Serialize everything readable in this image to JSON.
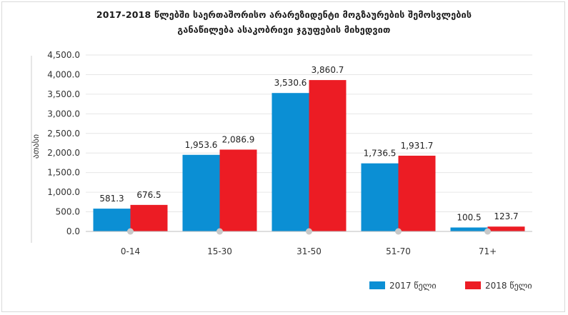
{
  "chart_data": {
    "type": "bar",
    "title_lines": [
      "2017-2018 წლებში საერთაშორისო არარეზიდენტი მოგზაურების შემოსვლების",
      "განაწილება ასაკობრივი ჯგუფების მიხედვით"
    ],
    "ylabel": "ათასი",
    "xlabel": "",
    "categories": [
      "0-14",
      "15-30",
      "31-50",
      "51-70",
      "71+"
    ],
    "series": [
      {
        "name": "2017 წელი",
        "color": "#0b8fd4",
        "values": [
          581.3,
          1953.6,
          3530.6,
          1736.5,
          100.5
        ],
        "labels": [
          "581.3",
          "1,953.6",
          "3,530.6",
          "1,736.5",
          "100.5"
        ]
      },
      {
        "name": "2018 წელი",
        "color": "#ec1c24",
        "values": [
          676.5,
          2086.9,
          3860.7,
          1931.7,
          123.7
        ],
        "labels": [
          "676.5",
          "2,086.9",
          "3,860.7",
          "1,931.7",
          "123.7"
        ]
      }
    ],
    "ylim": [
      0,
      4500
    ],
    "yticks": [
      0,
      500,
      1000,
      1500,
      2000,
      2500,
      3000,
      3500,
      4000,
      4500
    ],
    "ytick_labels": [
      "0.0",
      "500.0",
      "1,000.0",
      "1,500.0",
      "2,000.0",
      "2,500.0",
      "3,000.0",
      "3,500.0",
      "4,000.0",
      "4,500.0"
    ],
    "grid": true,
    "legend_position": "bottom-right"
  }
}
